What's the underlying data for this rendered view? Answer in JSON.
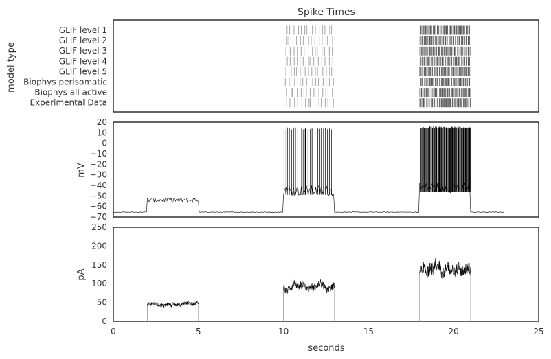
{
  "chart_data": [
    {
      "type": "raster",
      "title": "Spike Times",
      "ylabel": "model type",
      "xlim": [
        0,
        25
      ],
      "rows": [
        "GLIF level 1",
        "GLIF level 2",
        "GLIF level 3",
        "GLIF level 4",
        "GLIF level 5",
        "Biophys perisomatic",
        "Biophys all active",
        "Experimental Data"
      ],
      "spike_windows": [
        {
          "start": 10.1,
          "end": 13.0
        },
        {
          "start": 18.0,
          "end": 21.0
        }
      ],
      "colors": {
        "spikes_light": "#aaaaaa",
        "spikes_dark": "#555555"
      }
    },
    {
      "type": "line",
      "ylabel": "mV",
      "xlim": [
        0,
        25
      ],
      "ylim": [
        -70,
        20
      ],
      "yticks": [
        "20",
        "10",
        "0",
        "−10",
        "−20",
        "−30",
        "−40",
        "−50",
        "−60",
        "−70"
      ],
      "baseline_mV": -65.5,
      "end_time": 23,
      "segments": [
        {
          "start": 2,
          "end": 5,
          "mean_mV": -54,
          "spike_peak_mV": null
        },
        {
          "start": 10,
          "end": 13,
          "mean_mV": -45,
          "spike_peak_mV": 15
        },
        {
          "start": 18,
          "end": 21,
          "mean_mV": -42,
          "spike_peak_mV": 16
        }
      ],
      "color": "#000000"
    },
    {
      "type": "line",
      "xlabel": "seconds",
      "ylabel": "pA",
      "xlim": [
        0,
        25
      ],
      "ylim": [
        0,
        250
      ],
      "xticks": [
        "0",
        "5",
        "10",
        "15",
        "20",
        "25"
      ],
      "yticks": [
        "0",
        "50",
        "100",
        "150",
        "200",
        "250"
      ],
      "segments": [
        {
          "start": 2,
          "end": 5,
          "mean_pA": 45,
          "noise_pA": 10
        },
        {
          "start": 10,
          "end": 13,
          "mean_pA": 90,
          "noise_pA": 18
        },
        {
          "start": 18,
          "end": 21,
          "mean_pA": 135,
          "noise_pA": 30
        }
      ],
      "color": "#000000"
    }
  ]
}
